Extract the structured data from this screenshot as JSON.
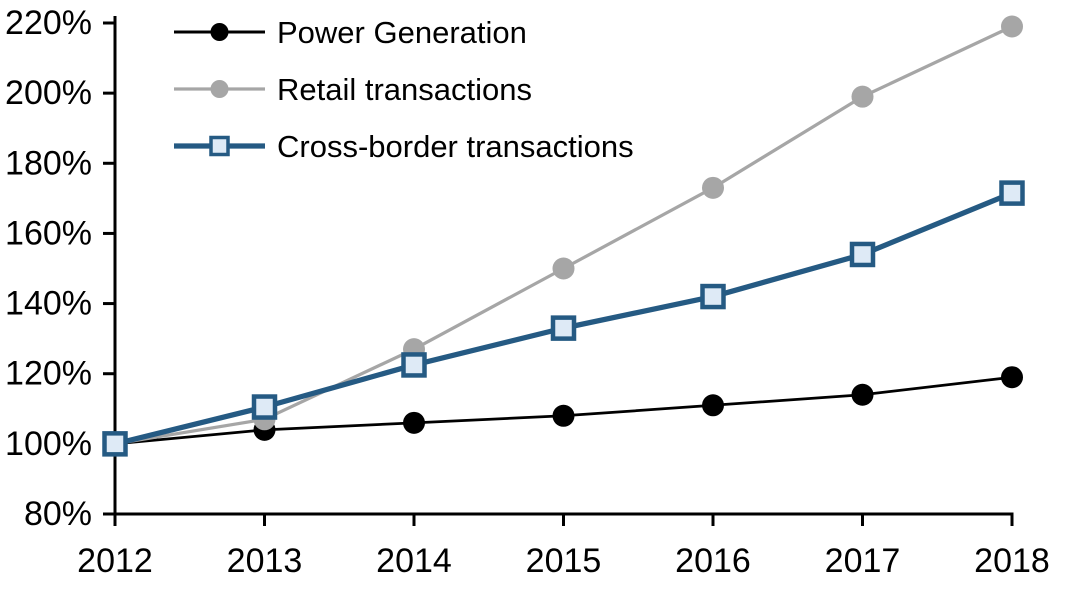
{
  "chart_data": {
    "type": "line",
    "title": "",
    "xlabel": "",
    "ylabel": "",
    "grid": false,
    "legend_position": "top-left",
    "categories": [
      "2012",
      "2013",
      "2014",
      "2015",
      "2016",
      "2017",
      "2018"
    ],
    "y_axis": {
      "min": 80,
      "max": 220,
      "step": 20,
      "tick_labels": [
        "80%",
        "100%",
        "120%",
        "140%",
        "160%",
        "180%",
        "200%",
        "220%"
      ]
    },
    "series": [
      {
        "name": "Power Generation",
        "color": "#000000",
        "marker": "circle",
        "marker_fill": "#000000",
        "line_width": 2.75,
        "values": [
          100,
          104,
          106,
          108,
          111,
          114,
          119
        ]
      },
      {
        "name": "Retail transactions",
        "color": "#a6a6a6",
        "marker": "circle",
        "marker_fill": "#a6a6a6",
        "line_width": 3.25,
        "values": [
          100,
          107,
          127,
          150,
          173,
          199,
          219
        ]
      },
      {
        "name": "Cross-border transactions",
        "color": "#255a83",
        "marker": "square",
        "marker_fill": "#deeaf6",
        "line_width": 5.25,
        "values": [
          100,
          110.5,
          122.5,
          133,
          142,
          154,
          171.5
        ]
      }
    ]
  }
}
